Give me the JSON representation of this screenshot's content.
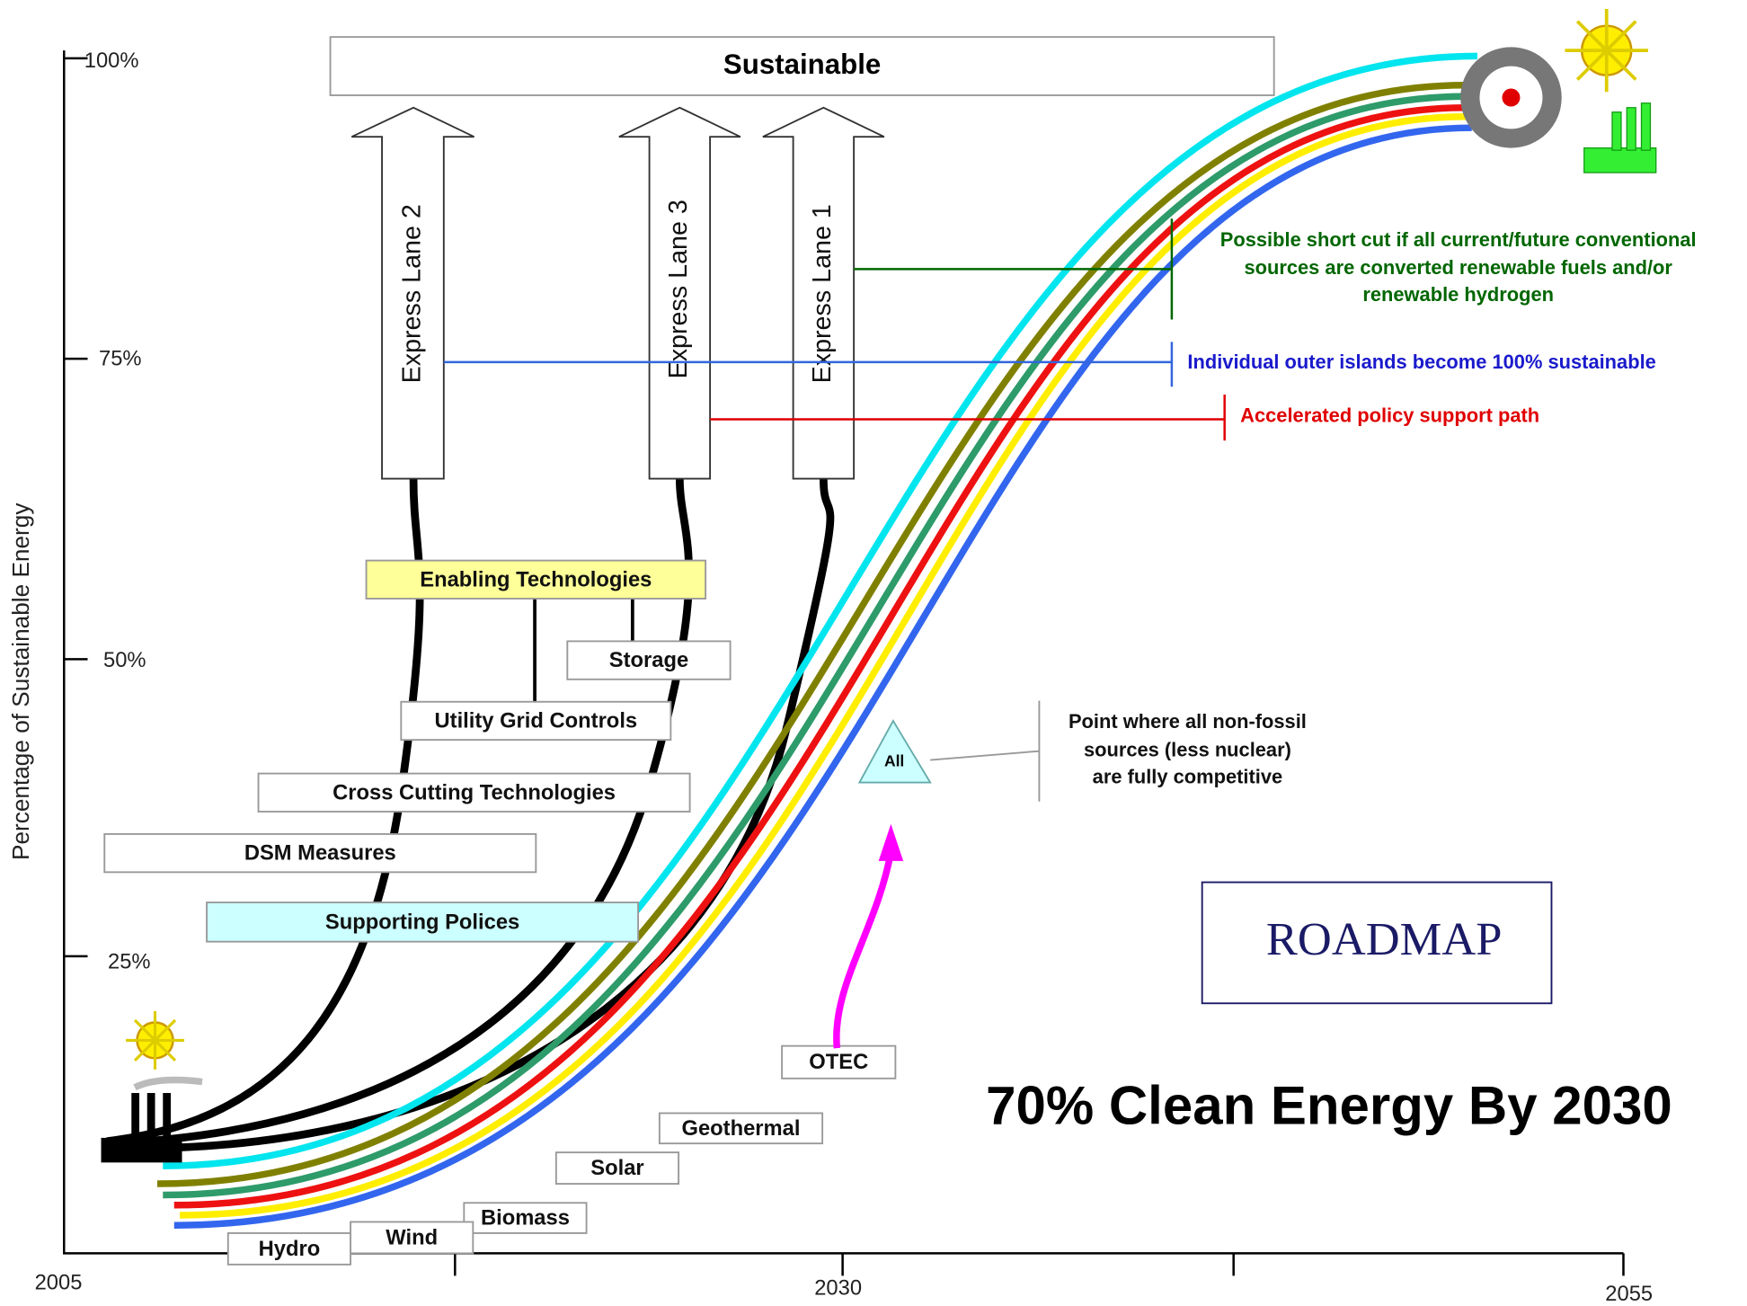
{
  "y_axis": {
    "label": "Percentage of Sustainable Energy",
    "ticks": [
      "100%",
      "75%",
      "50%",
      "25%"
    ]
  },
  "x_axis": {
    "ticks": [
      "2005",
      "2030",
      "2055"
    ]
  },
  "top_box": "Sustainable",
  "express_lanes": [
    "Express Lane 2",
    "Express Lane 3",
    "Express Lane 1"
  ],
  "boxes": [
    "Enabling Technologies",
    "Storage",
    "Utility Grid Controls",
    "Cross Cutting Technologies",
    "DSM Measures",
    "Supporting Polices",
    "OTEC",
    "Geothermal",
    "Solar",
    "Biomass",
    "Wind",
    "Hydro"
  ],
  "annotations": {
    "short_cut": [
      "Possible short cut if all current/future conventional",
      "sources are converted renewable fuels and/or",
      "renewable hydrogen"
    ],
    "islands": "Individual outer islands become 100% sustainable",
    "policy": "Accelerated policy support path",
    "competitive": [
      "Point where all non-fossil",
      "sources (less nuclear)",
      "are fully competitive"
    ],
    "marker": "All"
  },
  "roadmap": "ROADMAP",
  "title": "70% Clean Energy By 2030"
}
